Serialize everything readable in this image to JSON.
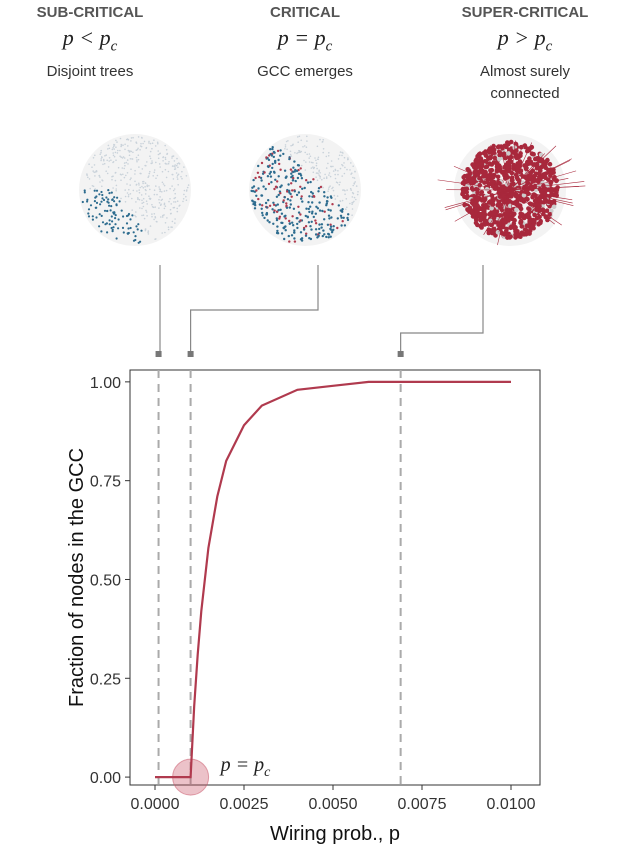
{
  "chart_data": {
    "type": "line",
    "panels": [
      {
        "title": "SUB-CRITICAL",
        "formula": "p < p",
        "formula_sub": "c",
        "caption": "Disjoint trees"
      },
      {
        "title": "CRITICAL",
        "formula": "p = p",
        "formula_sub": "c",
        "caption": "GCC emerges"
      },
      {
        "title": "SUPER-CRITICAL",
        "formula": "p > p",
        "formula_sub": "c",
        "caption": "Almost surely connected"
      }
    ],
    "x_label": "Wiring prob., p",
    "y_label": "Fraction of nodes in the GCC",
    "x": [
      0,
      0.0005,
      0.001,
      0.0011,
      0.0012,
      0.0013,
      0.0015,
      0.00175,
      0.002,
      0.0025,
      0.003,
      0.004,
      0.005,
      0.006,
      0.0075,
      0.01
    ],
    "series": [
      {
        "name": "GCC fraction",
        "color": "#b03a4e",
        "values": [
          0,
          0,
          0,
          0.18,
          0.31,
          0.42,
          0.58,
          0.71,
          0.8,
          0.89,
          0.94,
          0.98,
          0.99,
          1,
          1,
          1
        ]
      }
    ],
    "vlines": [
      0.0001,
      0.001,
      0.0069
    ],
    "highlight": {
      "x": 0.001,
      "y": 0,
      "label": "p = p",
      "label_sub": "c"
    },
    "xlim": [
      0,
      0.01
    ],
    "ylim": [
      -0.02,
      1.03
    ],
    "xticks": [
      {
        "value": 0,
        "label": "0.0000"
      },
      0.0025,
      {
        "value": 0.005,
        "label": "0.0050"
      },
      0.0075,
      {
        "value": 0.01,
        "label": "0.0100"
      }
    ],
    "yticks": [
      {
        "value": 0,
        "label": "0.00"
      },
      0.25,
      {
        "value": 0.5,
        "label": "0.50"
      },
      0.75,
      {
        "value": 1,
        "label": "1.00"
      }
    ]
  }
}
